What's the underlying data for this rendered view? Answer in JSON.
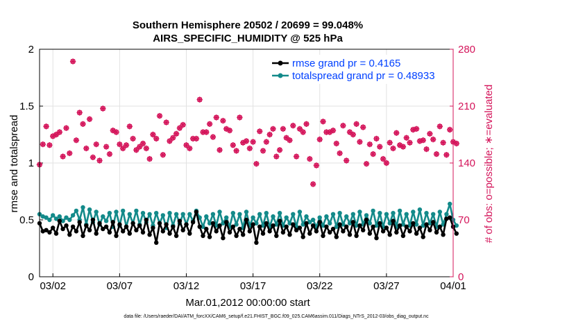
{
  "colors": {
    "rmse": "#000000",
    "spread": "#138a8a",
    "obs": "#d4145a",
    "legend_text": "#0040ff",
    "grid": "#e2e2e2"
  },
  "chart_data": {
    "type": "line",
    "title": "Southern Hemisphere 20502 / 20699 = 99.048%",
    "subtitle": "AIRS_SPECIFIC_HUMIDITY @ 525 hPa",
    "xlabel": "Mar.01,2012 00:00:00 start",
    "ylabel": "rmse and totalspread",
    "y2label": "# of obs: o=possible; ∗=evaluated",
    "footer": "data file: /Users/raeder/DAI/ATM_forcXX/CAM6_setup/f.e21.FHIST_BGC.f09_025.CAM6assim.011/Diags_NTrS_2012-03/obs_diag_output.nc",
    "xlim": [
      0,
      31
    ],
    "x_ticks": [
      {
        "x": 1,
        "label": "03/02"
      },
      {
        "x": 6,
        "label": "03/07"
      },
      {
        "x": 11,
        "label": "03/12"
      },
      {
        "x": 16,
        "label": "03/17"
      },
      {
        "x": 21,
        "label": "03/22"
      },
      {
        "x": 26,
        "label": "03/27"
      },
      {
        "x": 31,
        "label": "04/01"
      }
    ],
    "ylim": [
      0,
      2
    ],
    "y_ticks": [
      {
        "v": 0,
        "label": "0"
      },
      {
        "v": 0.5,
        "label": "0.5"
      },
      {
        "v": 1,
        "label": "1"
      },
      {
        "v": 1.5,
        "label": "1.5"
      },
      {
        "v": 2,
        "label": "2"
      }
    ],
    "y2lim": [
      0,
      280
    ],
    "y2_ticks": [
      {
        "v": 0,
        "label": "0"
      },
      {
        "v": 70,
        "label": "70"
      },
      {
        "v": 140,
        "label": "140"
      },
      {
        "v": 210,
        "label": "210"
      },
      {
        "v": 280,
        "label": "280"
      }
    ],
    "x_start": 0.0,
    "x_step": 0.25,
    "series": [
      {
        "name": "rmse",
        "legend": "rmse grand pr = 0.4165",
        "axis": "left",
        "values": [
          0.47,
          0.4,
          0.41,
          0.39,
          0.43,
          0.38,
          0.49,
          0.42,
          0.45,
          0.37,
          0.44,
          0.4,
          0.48,
          0.36,
          0.45,
          0.41,
          0.5,
          0.38,
          0.47,
          0.42,
          0.44,
          0.39,
          0.48,
          0.36,
          0.46,
          0.4,
          0.44,
          0.38,
          0.47,
          0.41,
          0.45,
          0.39,
          0.5,
          0.37,
          0.43,
          0.3,
          0.47,
          0.4,
          0.46,
          0.38,
          0.44,
          0.36,
          0.49,
          0.41,
          0.46,
          0.38,
          0.48,
          0.57,
          0.44,
          0.36,
          0.42,
          0.35,
          0.47,
          0.4,
          0.45,
          0.34,
          0.48,
          0.39,
          0.44,
          0.36,
          0.42,
          0.37,
          0.5,
          0.4,
          0.46,
          0.3,
          0.44,
          0.38,
          0.47,
          0.4,
          0.45,
          0.36,
          0.49,
          0.39,
          0.44,
          0.37,
          0.46,
          0.41,
          0.43,
          0.35,
          0.47,
          0.38,
          0.45,
          0.4,
          0.48,
          0.36,
          0.44,
          0.39,
          0.42,
          0.35,
          0.46,
          0.4,
          0.44,
          0.37,
          0.48,
          0.36,
          0.45,
          0.41,
          0.5,
          0.38,
          0.44,
          0.34,
          0.47,
          0.4,
          0.43,
          0.37,
          0.49,
          0.39,
          0.45,
          0.36,
          0.44,
          0.4,
          0.47,
          0.38,
          0.43,
          0.35,
          0.46,
          0.41,
          0.48,
          0.39,
          0.44,
          0.37,
          0.51,
          0.52,
          0.44,
          0.38
        ]
      },
      {
        "name": "totalspread",
        "legend": "totalspread grand pr = 0.48933",
        "axis": "left",
        "values": [
          0.55,
          0.53,
          0.52,
          0.5,
          0.54,
          0.51,
          0.53,
          0.49,
          0.52,
          0.5,
          0.54,
          0.58,
          0.5,
          0.61,
          0.46,
          0.59,
          0.48,
          0.57,
          0.46,
          0.53,
          0.49,
          0.56,
          0.44,
          0.57,
          0.45,
          0.58,
          0.44,
          0.55,
          0.47,
          0.58,
          0.46,
          0.56,
          0.48,
          0.55,
          0.45,
          0.56,
          0.47,
          0.54,
          0.43,
          0.56,
          0.45,
          0.55,
          0.47,
          0.55,
          0.46,
          0.55,
          0.49,
          0.58,
          0.52,
          0.44,
          0.53,
          0.47,
          0.55,
          0.45,
          0.57,
          0.47,
          0.52,
          0.44,
          0.56,
          0.46,
          0.55,
          0.43,
          0.57,
          0.45,
          0.52,
          0.47,
          0.55,
          0.45,
          0.56,
          0.44,
          0.53,
          0.46,
          0.56,
          0.45,
          0.52,
          0.47,
          0.55,
          0.44,
          0.57,
          0.46,
          0.53,
          0.48,
          0.5,
          0.44,
          0.52,
          0.45,
          0.53,
          0.47,
          0.55,
          0.44,
          0.56,
          0.46,
          0.53,
          0.47,
          0.55,
          0.45,
          0.57,
          0.46,
          0.54,
          0.47,
          0.58,
          0.45,
          0.56,
          0.44,
          0.55,
          0.47,
          0.56,
          0.44,
          0.58,
          0.46,
          0.55,
          0.45,
          0.57,
          0.46,
          0.59,
          0.45,
          0.56,
          0.47,
          0.55,
          0.44,
          0.57,
          0.46,
          0.55,
          0.64,
          0.5,
          0.45
        ]
      },
      {
        "name": "# of obs possible/evaluated",
        "axis": "right",
        "values": [
          138,
          163,
          185,
          162,
          173,
          175,
          178,
          148,
          183,
          152,
          265,
          168,
          202,
          188,
          158,
          194,
          147,
          163,
          143,
          207,
          160,
          151,
          180,
          178,
          163,
          158,
          162,
          185,
          170,
          156,
          160,
          164,
          158,
          145,
          175,
          170,
          198,
          150,
          190,
          167,
          171,
          176,
          183,
          187,
          162,
          158,
          170,
          170,
          218,
          178,
          178,
          188,
          172,
          196,
          156,
          192,
          182,
          180,
          162,
          155,
          196,
          165,
          167,
          158,
          166,
          139,
          179,
          155,
          166,
          175,
          182,
          148,
          156,
          182,
          171,
          168,
          186,
          148,
          182,
          178,
          188,
          145,
          114,
          137,
          169,
          191,
          178,
          178,
          180,
          164,
          152,
          186,
          143,
          178,
          175,
          188,
          166,
          184,
          139,
          163,
          151,
          170,
          160,
          145,
          140,
          165,
          158,
          177,
          162,
          160,
          171,
          165,
          181,
          182,
          167,
          168,
          157,
          176,
          169,
          151,
          185,
          165,
          150,
          181,
          166,
          164
        ]
      }
    ]
  }
}
